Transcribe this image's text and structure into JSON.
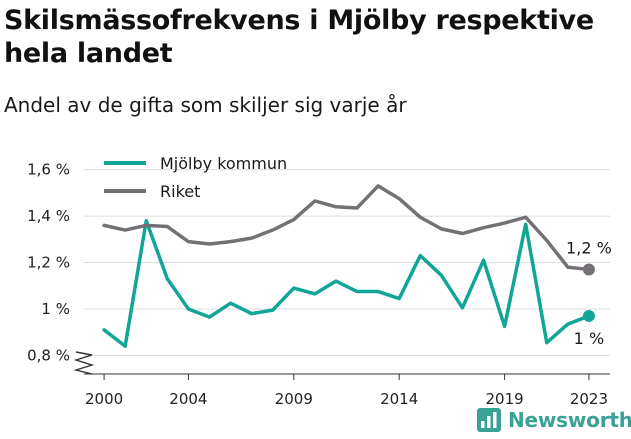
{
  "page": {
    "title": "Skilsmässofrekvens i Mjölby respektive hela landet",
    "subtitle": "Andel av de gifta som skiljer sig varje år",
    "brand": "Newsworthy",
    "brand_color": "#3aa197"
  },
  "chart_data": {
    "type": "line",
    "title": "Skilsmässofrekvens i Mjölby respektive hela landet",
    "subtitle": "Andel av de gifta som skiljer sig varje år",
    "xlabel": "",
    "ylabel": "",
    "x": [
      2000,
      2001,
      2002,
      2003,
      2004,
      2005,
      2006,
      2007,
      2008,
      2009,
      2010,
      2011,
      2012,
      2013,
      2014,
      2015,
      2016,
      2017,
      2018,
      2019,
      2020,
      2021,
      2022,
      2023
    ],
    "x_ticks": [
      2000,
      2004,
      2009,
      2014,
      2019,
      2023
    ],
    "x_tick_labels": [
      "2000",
      "2004",
      "2009",
      "2014",
      "2019",
      "2023"
    ],
    "xlim": [
      1999,
      2024
    ],
    "ylim": [
      0.72,
      1.62
    ],
    "y_ticks": [
      0.8,
      1.0,
      1.2,
      1.4,
      1.6
    ],
    "y_tick_labels": [
      "0,8 %",
      "1 %",
      "1,2 %",
      "1,4 %",
      "1,6 %"
    ],
    "grid": true,
    "legend_position": "top-left",
    "series": [
      {
        "name": "Mjölby kommun",
        "color": "#10a597",
        "values": [
          0.91,
          0.84,
          1.38,
          1.13,
          1.0,
          0.965,
          1.025,
          0.98,
          0.995,
          1.09,
          1.065,
          1.12,
          1.075,
          1.075,
          1.045,
          1.23,
          1.145,
          1.005,
          1.21,
          0.925,
          1.365,
          0.855,
          0.935,
          0.97
        ],
        "end_label": "1 %"
      },
      {
        "name": "Riket",
        "color": "#747075",
        "values": [
          1.36,
          1.34,
          1.36,
          1.355,
          1.29,
          1.28,
          1.29,
          1.305,
          1.34,
          1.385,
          1.465,
          1.44,
          1.435,
          1.53,
          1.475,
          1.395,
          1.345,
          1.325,
          1.35,
          1.37,
          1.395,
          1.295,
          1.18,
          1.17
        ],
        "end_label": "1,2 %"
      }
    ]
  }
}
